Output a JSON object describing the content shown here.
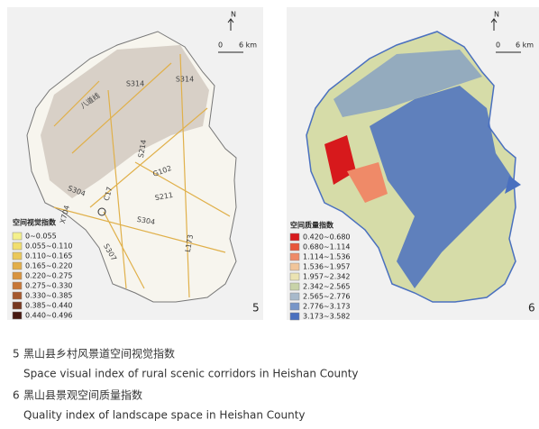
{
  "figure_5": {
    "number": "5",
    "north": "N",
    "scale": {
      "start": "0",
      "end": "6 km"
    },
    "road_labels": [
      "S314",
      "S314",
      "八道线",
      "S214",
      "G102",
      "S211",
      "S304",
      "S304",
      "C17",
      "X704",
      "S307",
      "L173"
    ],
    "legend": {
      "title": "空间视觉指数",
      "items": [
        {
          "label": "0~0.055",
          "color": "#f4f08c"
        },
        {
          "label": "0.055~0.110",
          "color": "#f1de6e"
        },
        {
          "label": "0.110~0.165",
          "color": "#eac85a"
        },
        {
          "label": "0.165~0.220",
          "color": "#e2ae4a"
        },
        {
          "label": "0.220~0.275",
          "color": "#d8933f"
        },
        {
          "label": "0.275~0.330",
          "color": "#c77738"
        },
        {
          "label": "0.330~0.385",
          "color": "#a5582e"
        },
        {
          "label": "0.385~0.440",
          "color": "#773820"
        },
        {
          "label": "0.440~0.496",
          "color": "#461810"
        }
      ]
    }
  },
  "figure_6": {
    "number": "6",
    "north": "N",
    "scale": {
      "start": "0",
      "end": "6 km"
    },
    "legend": {
      "title": "空间质量指数",
      "items": [
        {
          "label": "0.420~0.680",
          "color": "#d7191c"
        },
        {
          "label": "0.680~1.114",
          "color": "#e8553b"
        },
        {
          "label": "1.114~1.536",
          "color": "#ef8a68"
        },
        {
          "label": "1.536~1.957",
          "color": "#f1c59a"
        },
        {
          "label": "1.957~2.342",
          "color": "#ebe3b2"
        },
        {
          "label": "2.342~2.565",
          "color": "#c8d3a8"
        },
        {
          "label": "2.565~2.776",
          "color": "#a8b9cb"
        },
        {
          "label": "2.776~3.173",
          "color": "#7896c8"
        },
        {
          "label": "3.173~3.582",
          "color": "#4a70bf"
        }
      ]
    }
  },
  "captions": [
    {
      "number": "5",
      "zh": "黑山县乡村风景道空间视觉指数",
      "en": "Space visual index of rural scenic corridors in Heishan County"
    },
    {
      "number": "6",
      "zh": "黑山县景观空间质量指数",
      "en": "Quality index of landscape space in Heishan County"
    }
  ]
}
